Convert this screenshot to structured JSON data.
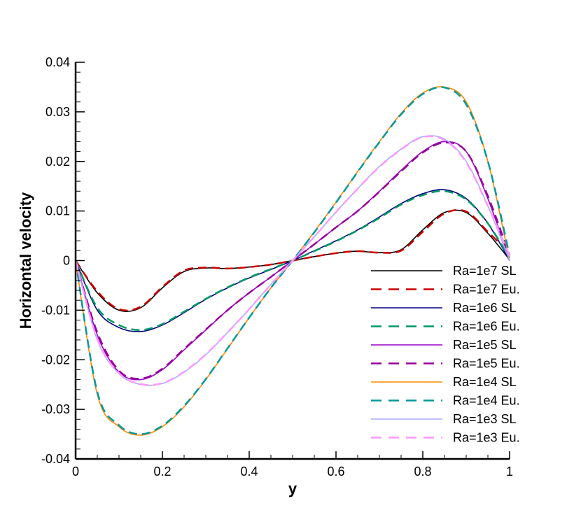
{
  "chart_data": {
    "type": "line",
    "title": "",
    "xlabel": "y",
    "ylabel": "Horizontal velocity",
    "xlim": [
      0,
      1
    ],
    "ylim": [
      -0.04,
      0.04
    ],
    "xticks": [
      0,
      0.2,
      0.4,
      0.6,
      0.8,
      1
    ],
    "xtick_labels": [
      "0",
      "0.2",
      "0.4",
      "0.6",
      "0.8",
      "1"
    ],
    "yticks": [
      -0.04,
      -0.03,
      -0.02,
      -0.01,
      0,
      0.01,
      0.02,
      0.03,
      0.04
    ],
    "ytick_labels": [
      "-0.04",
      "-0.03",
      "-0.02",
      "-0.01",
      "0",
      "0.01",
      "0.02",
      "0.03",
      "0.04"
    ],
    "grid": false,
    "legend_position": "right",
    "x": [
      0,
      0.05,
      0.1,
      0.15,
      0.2,
      0.25,
      0.3,
      0.35,
      0.4,
      0.45,
      0.5,
      0.55,
      0.6,
      0.65,
      0.7,
      0.75,
      0.8,
      0.85,
      0.9,
      0.95,
      1
    ],
    "series": [
      {
        "name": "Ra=1e7 SL",
        "color": "#000000",
        "dash": "solid",
        "values": [
          0,
          -0.0065,
          -0.01,
          -0.0095,
          -0.0055,
          -0.0022,
          -0.0015,
          -0.0016,
          -0.0013,
          -0.0008,
          0,
          0.0008,
          0.0015,
          0.0019,
          0.0016,
          0.0022,
          0.0062,
          0.0097,
          0.0097,
          0.0055,
          0.0002
        ]
      },
      {
        "name": "Ra=1e7 Eu.",
        "color": "#cc0000",
        "dash": "dashed",
        "values": [
          0,
          -0.0062,
          -0.0098,
          -0.0093,
          -0.0053,
          -0.002,
          -0.0014,
          -0.0016,
          -0.0013,
          -0.0008,
          0,
          0.0008,
          0.0015,
          0.0019,
          0.0016,
          0.002,
          0.0058,
          0.0095,
          0.0099,
          0.0058,
          0.0015
        ]
      },
      {
        "name": "Ra=1e6 SL",
        "color": "#000080",
        "dash": "solid",
        "values": [
          0,
          -0.01,
          -0.0135,
          -0.0143,
          -0.013,
          -0.0105,
          -0.0078,
          -0.0055,
          -0.0035,
          -0.0018,
          0,
          0.002,
          0.004,
          0.0062,
          0.0088,
          0.0115,
          0.0135,
          0.0143,
          0.0125,
          0.0075,
          0
        ]
      },
      {
        "name": "Ra=1e6 Eu.",
        "color": "#009966",
        "dash": "dashed",
        "values": [
          0,
          -0.0095,
          -0.013,
          -0.014,
          -0.0128,
          -0.0103,
          -0.0077,
          -0.0054,
          -0.0034,
          -0.0017,
          0,
          0.0019,
          0.0039,
          0.0061,
          0.0086,
          0.0113,
          0.0132,
          0.014,
          0.0123,
          0.0075,
          0.0005
        ]
      },
      {
        "name": "Ra=1e5 SL",
        "color": "#9900cc",
        "dash": "solid",
        "values": [
          0,
          -0.015,
          -0.0225,
          -0.024,
          -0.022,
          -0.018,
          -0.014,
          -0.01,
          -0.0065,
          -0.0033,
          0,
          0.0033,
          0.0067,
          0.01,
          0.014,
          0.0182,
          0.022,
          0.024,
          0.022,
          0.0125,
          0
        ]
      },
      {
        "name": "Ra=1e5 Eu.",
        "color": "#990099",
        "dash": "dashed",
        "values": [
          0,
          -0.0145,
          -0.0222,
          -0.0238,
          -0.0218,
          -0.0178,
          -0.0139,
          -0.01,
          -0.0065,
          -0.0033,
          0,
          0.0033,
          0.0067,
          0.01,
          0.0139,
          0.018,
          0.0218,
          0.0238,
          0.022,
          0.013,
          0.001
        ]
      },
      {
        "name": "Ra=1e4 SL",
        "color": "#ff8800",
        "dash": "solid",
        "values": [
          0,
          -0.027,
          -0.0335,
          -0.0352,
          -0.0335,
          -0.0295,
          -0.024,
          -0.0178,
          -0.0115,
          -0.0055,
          0,
          0.0058,
          0.0118,
          0.018,
          0.024,
          0.0297,
          0.0338,
          0.035,
          0.032,
          0.02,
          0
        ]
      },
      {
        "name": "Ra=1e4 Eu.",
        "color": "#009999",
        "dash": "dashed",
        "values": [
          0,
          -0.0265,
          -0.0332,
          -0.035,
          -0.0333,
          -0.0293,
          -0.0239,
          -0.0177,
          -0.0115,
          -0.0055,
          0,
          0.0057,
          0.0117,
          0.0179,
          0.0239,
          0.0295,
          0.0336,
          0.0349,
          0.0315,
          0.02,
          0.001
        ]
      },
      {
        "name": "Ra=1e3 SL",
        "color": "#aaaaff",
        "dash": "solid",
        "values": [
          0,
          -0.016,
          -0.0228,
          -0.025,
          -0.0248,
          -0.0225,
          -0.019,
          -0.0145,
          -0.0098,
          -0.0048,
          0,
          0.0048,
          0.0098,
          0.0145,
          0.019,
          0.0225,
          0.025,
          0.0245,
          0.02,
          0.011,
          0
        ]
      },
      {
        "name": "Ra=1e3 Eu.",
        "color": "#ff99ff",
        "dash": "dashed",
        "values": [
          0,
          -0.0158,
          -0.0227,
          -0.0249,
          -0.0247,
          -0.0224,
          -0.0189,
          -0.0145,
          -0.0098,
          -0.0048,
          0,
          0.0048,
          0.0098,
          0.0145,
          0.0189,
          0.0224,
          0.0249,
          0.0243,
          0.0198,
          0.011,
          0.001
        ]
      }
    ]
  }
}
